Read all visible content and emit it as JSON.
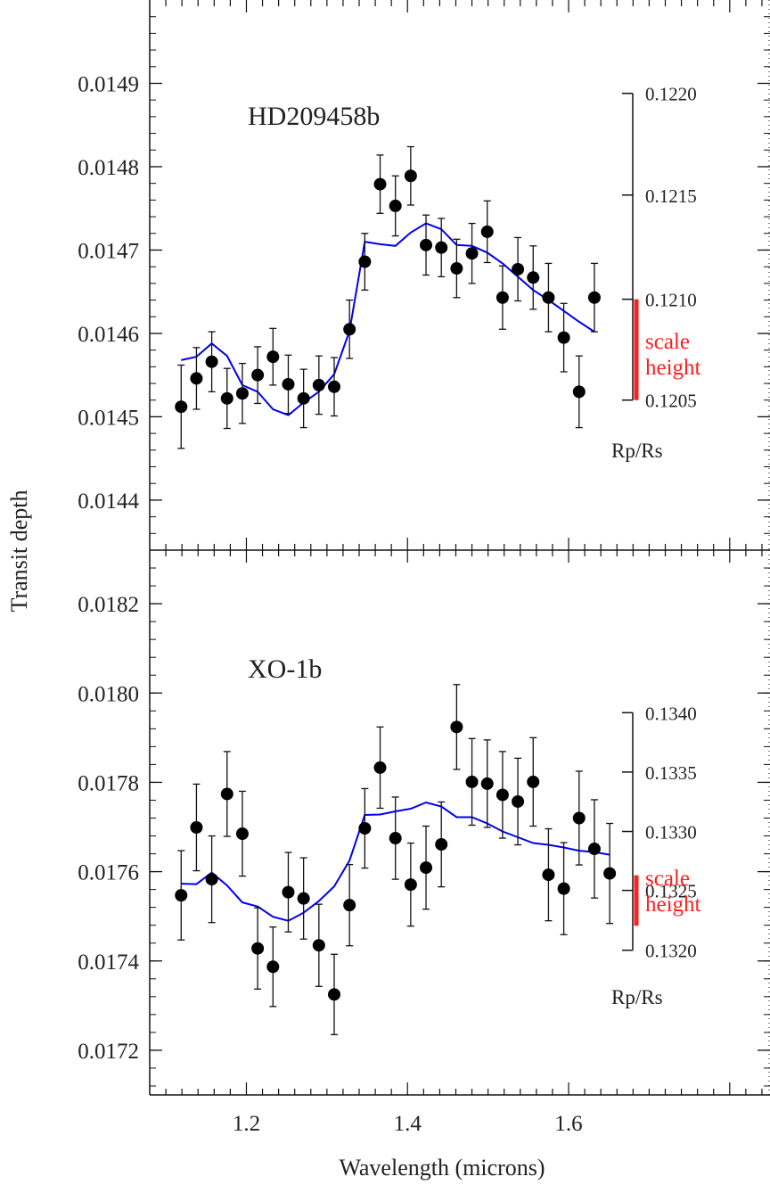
{
  "figure": {
    "ylabel": "Transit depth",
    "xlabel": "Wavelength (microns)"
  },
  "chart_data": [
    {
      "type": "scatter",
      "title": "HD209458b",
      "xlabel": "Wavelength (microns)",
      "ylabel": "Transit depth",
      "xlim": [
        1.08,
        1.85
      ],
      "ylim": [
        0.01434,
        0.015
      ],
      "x_ticks": [
        "1.2",
        "1.4",
        "1.6"
      ],
      "y_ticks": [
        "0.0144",
        "0.0145",
        "0.0146",
        "0.0147",
        "0.0148",
        "0.0149"
      ],
      "series": [
        {
          "x": [
            1.119,
            1.138,
            1.157,
            1.176,
            1.195,
            1.214,
            1.233,
            1.252,
            1.271,
            1.29,
            1.309,
            1.328,
            1.347,
            1.366,
            1.385,
            1.404,
            1.423,
            1.442,
            1.461,
            1.48,
            1.499,
            1.518,
            1.537,
            1.556,
            1.575,
            1.594,
            1.613,
            1.632
          ],
          "y": [
            0.014512,
            0.014546,
            0.014566,
            0.014522,
            0.014528,
            0.01455,
            0.014572,
            0.014539,
            0.014522,
            0.014538,
            0.014536,
            0.014605,
            0.014686,
            0.014779,
            0.014753,
            0.014789,
            0.014706,
            0.014703,
            0.014678,
            0.014696,
            0.014722,
            0.014643,
            0.014677,
            0.014667,
            0.014643,
            0.014595,
            0.01453,
            0.014643
          ],
          "err": [
            5e-05,
            3.7e-05,
            3.6e-05,
            3.6e-05,
            3.6e-05,
            3.4e-05,
            3.4e-05,
            3.5e-05,
            3.5e-05,
            3.5e-05,
            3.5e-05,
            3.5e-05,
            3.4e-05,
            3.5e-05,
            3.6e-05,
            3.5e-05,
            3.6e-05,
            3.5e-05,
            3.5e-05,
            3.6e-05,
            3.7e-05,
            3.8e-05,
            3.8e-05,
            3.8e-05,
            4.1e-05,
            4.1e-05,
            4.3e-05,
            4.1e-05
          ]
        },
        {
          "type": "line",
          "color": "#0000ee",
          "x": [
            1.119,
            1.138,
            1.157,
            1.176,
            1.195,
            1.214,
            1.233,
            1.252,
            1.271,
            1.29,
            1.309,
            1.328,
            1.347,
            1.366,
            1.385,
            1.404,
            1.423,
            1.442,
            1.461,
            1.48,
            1.499,
            1.518,
            1.537,
            1.556,
            1.575,
            1.594,
            1.613,
            1.632
          ],
          "y": [
            0.014568,
            0.014572,
            0.014588,
            0.014573,
            0.014538,
            0.01453,
            0.014509,
            0.014502,
            0.014517,
            0.01453,
            0.014551,
            0.014603,
            0.01471,
            0.014707,
            0.014705,
            0.014721,
            0.014732,
            0.014725,
            0.014706,
            0.014705,
            0.014697,
            0.014684,
            0.014668,
            0.014652,
            0.01464,
            0.014627,
            0.014614,
            0.014602
          ]
        }
      ],
      "secondary_axis": {
        "label": "Rp/Rs",
        "ticks": [
          "0.1220",
          "0.1215",
          "0.1210",
          "0.1205"
        ],
        "tick_y_values": [
          0.014888,
          0.014766,
          0.014641,
          0.01452
        ]
      },
      "scale_height": {
        "label_line1": "scale",
        "label_line2": "height",
        "color": "#ff2020",
        "y_top": 0.014641,
        "y_bottom": 0.01452
      }
    },
    {
      "type": "scatter",
      "title": "XO-1b",
      "xlabel": "Wavelength (microns)",
      "ylabel": "Transit depth",
      "xlim": [
        1.08,
        1.85
      ],
      "ylim": [
        0.0171,
        0.01832
      ],
      "x_ticks": [
        "1.2",
        "1.4",
        "1.6"
      ],
      "y_ticks": [
        "0.0172",
        "0.0174",
        "0.0176",
        "0.0178",
        "0.0180",
        "0.0182"
      ],
      "series": [
        {
          "x": [
            1.119,
            1.138,
            1.157,
            1.176,
            1.195,
            1.214,
            1.233,
            1.252,
            1.271,
            1.29,
            1.309,
            1.328,
            1.347,
            1.366,
            1.385,
            1.404,
            1.423,
            1.442,
            1.461,
            1.48,
            1.499,
            1.518,
            1.537,
            1.556,
            1.575,
            1.594,
            1.613,
            1.632,
            1.651
          ],
          "y": [
            0.017547,
            0.017699,
            0.017583,
            0.017774,
            0.017685,
            0.017428,
            0.017387,
            0.017554,
            0.01754,
            0.017435,
            0.017325,
            0.017525,
            0.017697,
            0.017833,
            0.017675,
            0.017571,
            0.017609,
            0.017661,
            0.017924,
            0.017801,
            0.017797,
            0.017772,
            0.017757,
            0.017801,
            0.017593,
            0.017562,
            0.01772,
            0.017651,
            0.017596
          ],
          "err": [
            0.0001,
            9.7e-05,
            9.7e-05,
            9.5e-05,
            9.5e-05,
            9.1e-05,
            8.9e-05,
            8.9e-05,
            9.1e-05,
            9.2e-05,
            9e-05,
            9.1e-05,
            8.9e-05,
            9.1e-05,
            9.2e-05,
            9.3e-05,
            9.3e-05,
            9.5e-05,
            9.5e-05,
            9.7e-05,
            9.8e-05,
            9.7e-05,
            9.7e-05,
            9.9e-05,
            0.000103,
            0.000103,
            0.000105,
            0.00011,
            0.000112
          ]
        },
        {
          "type": "line",
          "color": "#0000ee",
          "x": [
            1.119,
            1.138,
            1.157,
            1.176,
            1.195,
            1.214,
            1.233,
            1.252,
            1.271,
            1.29,
            1.309,
            1.328,
            1.347,
            1.366,
            1.385,
            1.404,
            1.423,
            1.442,
            1.461,
            1.48,
            1.499,
            1.518,
            1.537,
            1.556,
            1.575,
            1.594,
            1.613,
            1.632,
            1.651
          ],
          "y": [
            0.017573,
            0.017572,
            0.017598,
            0.017569,
            0.017531,
            0.017522,
            0.017499,
            0.01749,
            0.017508,
            0.017534,
            0.017567,
            0.017625,
            0.017727,
            0.017728,
            0.017735,
            0.017741,
            0.017755,
            0.017746,
            0.017722,
            0.017722,
            0.017708,
            0.01769,
            0.017677,
            0.017664,
            0.01766,
            0.017654,
            0.017647,
            0.017644,
            0.017638
          ]
        }
      ],
      "secondary_axis": {
        "label": "Rp/Rs",
        "ticks": [
          "0.1340",
          "0.1335",
          "0.1330",
          "0.1325",
          "0.1320"
        ],
        "tick_y_values": [
          0.017956,
          0.017823,
          0.01769,
          0.017558,
          0.017424
        ]
      },
      "scale_height": {
        "label_line1": "scale",
        "label_line2": "height",
        "color": "#ff2020",
        "y_top": 0.017592,
        "y_bottom": 0.017479
      }
    }
  ]
}
